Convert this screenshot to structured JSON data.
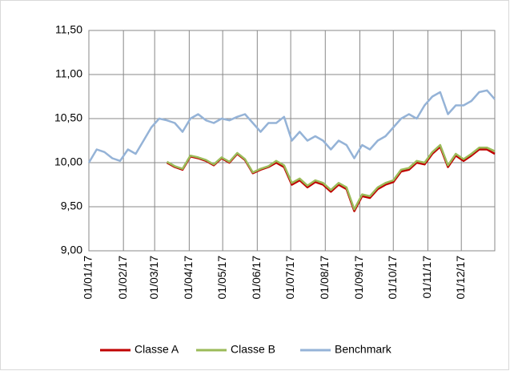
{
  "chart_data": {
    "type": "line",
    "x": [
      "01/01/17",
      "08/01/17",
      "15/01/17",
      "22/01/17",
      "29/01/17",
      "05/02/17",
      "12/02/17",
      "19/02/17",
      "26/02/17",
      "05/03/17",
      "12/03/17",
      "19/03/17",
      "26/03/17",
      "02/04/17",
      "09/04/17",
      "16/04/17",
      "23/04/17",
      "30/04/17",
      "07/05/17",
      "14/05/17",
      "21/05/17",
      "28/05/17",
      "04/06/17",
      "11/06/17",
      "18/06/17",
      "25/06/17",
      "02/07/17",
      "09/07/17",
      "16/07/17",
      "23/07/17",
      "30/07/17",
      "06/08/17",
      "13/08/17",
      "20/08/17",
      "27/08/17",
      "03/09/17",
      "10/09/17",
      "17/09/17",
      "24/09/17",
      "01/10/17",
      "08/10/17",
      "15/10/17",
      "22/10/17",
      "29/10/17",
      "05/11/17",
      "12/11/17",
      "19/11/17",
      "26/11/17",
      "03/12/17",
      "10/12/17",
      "17/12/17",
      "24/12/17",
      "31/12/17"
    ],
    "series": [
      {
        "name": "Classe A",
        "color": "#c00000",
        "values": [
          null,
          null,
          null,
          null,
          null,
          null,
          null,
          null,
          null,
          null,
          10.0,
          9.95,
          9.92,
          10.07,
          10.05,
          10.02,
          9.97,
          10.05,
          10.0,
          10.1,
          10.03,
          9.88,
          9.92,
          9.95,
          10.0,
          9.95,
          9.75,
          9.8,
          9.72,
          9.78,
          9.75,
          9.67,
          9.75,
          9.7,
          9.45,
          9.62,
          9.6,
          9.7,
          9.75,
          9.78,
          9.9,
          9.92,
          10.0,
          9.98,
          10.1,
          10.18,
          9.95,
          10.08,
          10.02,
          10.08,
          10.15,
          10.15,
          10.1
        ]
      },
      {
        "name": "Classe B",
        "color": "#9bbb59",
        "values": [
          null,
          null,
          null,
          null,
          null,
          null,
          null,
          null,
          null,
          null,
          10.01,
          9.96,
          9.93,
          10.08,
          10.06,
          10.03,
          9.98,
          10.06,
          10.01,
          10.11,
          10.04,
          9.89,
          9.93,
          9.96,
          10.02,
          9.97,
          9.77,
          9.82,
          9.74,
          9.8,
          9.77,
          9.69,
          9.77,
          9.72,
          9.47,
          9.64,
          9.62,
          9.72,
          9.77,
          9.8,
          9.92,
          9.94,
          10.02,
          10.0,
          10.12,
          10.2,
          9.97,
          10.1,
          10.04,
          10.1,
          10.17,
          10.17,
          10.13
        ]
      },
      {
        "name": "Benchmark",
        "color": "#95b3d7",
        "values": [
          10.0,
          10.15,
          10.12,
          10.05,
          10.02,
          10.15,
          10.1,
          10.25,
          10.4,
          10.5,
          10.48,
          10.45,
          10.35,
          10.5,
          10.55,
          10.48,
          10.45,
          10.5,
          10.48,
          10.52,
          10.55,
          10.45,
          10.35,
          10.45,
          10.45,
          10.52,
          10.25,
          10.35,
          10.25,
          10.3,
          10.25,
          10.15,
          10.25,
          10.2,
          10.05,
          10.2,
          10.15,
          10.25,
          10.3,
          10.4,
          10.5,
          10.55,
          10.5,
          10.65,
          10.75,
          10.8,
          10.55,
          10.65,
          10.65,
          10.7,
          10.8,
          10.82,
          10.72
        ]
      }
    ],
    "xlim": [
      "01/01/17",
      "31/12/17"
    ],
    "xticks": [
      "01/01/17",
      "01/02/17",
      "01/03/17",
      "01/04/17",
      "01/05/17",
      "01/06/17",
      "01/07/17",
      "01/08/17",
      "01/09/17",
      "01/10/17",
      "01/11/17",
      "01/12/17"
    ],
    "ylim": [
      9,
      11.5
    ],
    "yticks": [
      {
        "value": 9,
        "label": "9,00"
      },
      {
        "value": 9.5,
        "label": "9,50"
      },
      {
        "value": 10,
        "label": "10,00"
      },
      {
        "value": 10.5,
        "label": "10,50"
      },
      {
        "value": 11,
        "label": "11,00"
      },
      {
        "value": 11.5,
        "label": "11,50"
      }
    ],
    "grid": true,
    "legend": "bottom"
  }
}
